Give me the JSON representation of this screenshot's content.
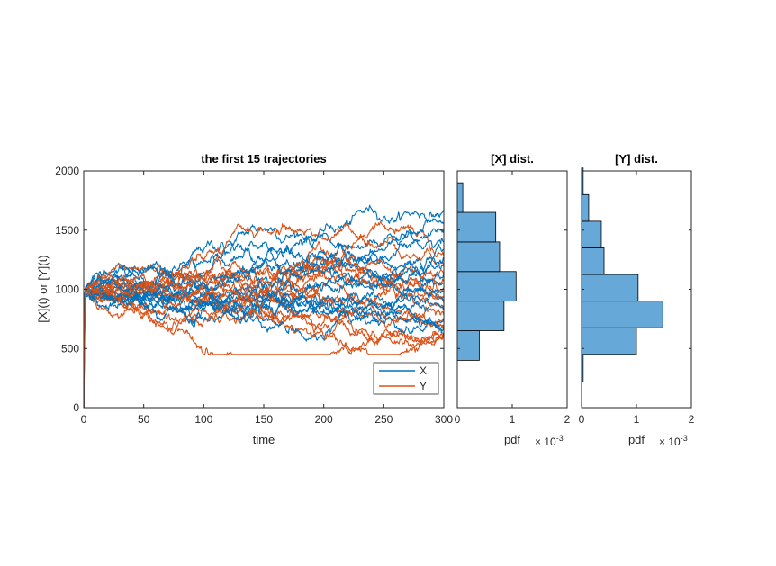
{
  "chart_data": [
    {
      "type": "line",
      "title": "the first 15 trajectories",
      "xlabel": "time",
      "ylabel": "[X](t) or [Y](t)",
      "xlim": [
        0,
        300
      ],
      "ylim": [
        0,
        2000
      ],
      "xticks": [
        0,
        50,
        100,
        150,
        200,
        250,
        300
      ],
      "yticks": [
        0,
        500,
        1000,
        1500,
        2000
      ],
      "x_tick_labels": [
        "0",
        "50",
        "100",
        "150",
        "200",
        "250",
        "300"
      ],
      "y_tick_labels": [
        "0",
        "500",
        "1000",
        "1500",
        "2000"
      ],
      "trajectories_per_series": 15,
      "initial_value": 1000,
      "legend": {
        "position": "bottom-right",
        "entries": [
          "X",
          "Y"
        ]
      },
      "series": [
        {
          "name": "X",
          "color": "#0072BD",
          "final_values": [
            1650,
            1560,
            1480,
            1400,
            1330,
            1260,
            1190,
            1120,
            1050,
            980,
            900,
            830,
            760,
            690,
            610
          ]
        },
        {
          "name": "Y",
          "color": "#D95319",
          "final_values": [
            1300,
            1220,
            1140,
            1070,
            1000,
            940,
            880,
            830,
            780,
            730,
            690,
            650,
            620,
            600,
            580
          ]
        }
      ]
    },
    {
      "type": "histogram",
      "orientation": "horizontal",
      "title": "[X] dist.",
      "xlabel": "pdf",
      "x_exponent_label": "× 10",
      "x_exponent": "-3",
      "xlim": [
        0,
        2
      ],
      "x_tick_labels": [
        "0",
        "1",
        "2"
      ],
      "ylim": [
        0,
        2000
      ],
      "bar_color": "#66A9D9",
      "bins": [
        {
          "range": [
            400,
            650
          ],
          "pdf": 0.4
        },
        {
          "range": [
            650,
            900
          ],
          "pdf": 0.85
        },
        {
          "range": [
            900,
            1150
          ],
          "pdf": 1.07
        },
        {
          "range": [
            1150,
            1400
          ],
          "pdf": 0.77
        },
        {
          "range": [
            1400,
            1650
          ],
          "pdf": 0.7
        },
        {
          "range": [
            1650,
            1900
          ],
          "pdf": 0.1
        }
      ]
    },
    {
      "type": "histogram",
      "orientation": "horizontal",
      "title": "[Y] dist.",
      "xlabel": "pdf",
      "x_exponent_label": "× 10",
      "x_exponent": "-3",
      "xlim": [
        0,
        2
      ],
      "x_tick_labels": [
        "0",
        "1",
        "2"
      ],
      "ylim": [
        0,
        2000
      ],
      "bar_color": "#66A9D9",
      "bins": [
        {
          "range": [
            225,
            450
          ],
          "pdf": 0.03
        },
        {
          "range": [
            450,
            675
          ],
          "pdf": 1.0
        },
        {
          "range": [
            675,
            900
          ],
          "pdf": 1.48
        },
        {
          "range": [
            900,
            1125
          ],
          "pdf": 1.03
        },
        {
          "range": [
            1125,
            1350
          ],
          "pdf": 0.41
        },
        {
          "range": [
            1350,
            1575
          ],
          "pdf": 0.36
        },
        {
          "range": [
            1575,
            1800
          ],
          "pdf": 0.13
        },
        {
          "range": [
            1800,
            2025
          ],
          "pdf": 0.03
        }
      ]
    }
  ]
}
